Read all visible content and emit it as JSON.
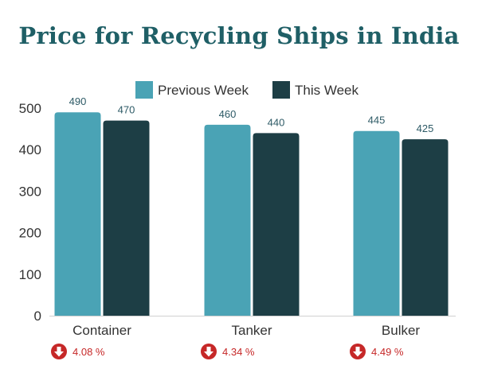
{
  "page": {
    "title": "Price for Recycling Ships in India"
  },
  "colors": {
    "previous": "#4aa3b5",
    "current": "#1d3e45",
    "decline": "#c62828",
    "title": "#1f5f66"
  },
  "chart_data": {
    "type": "bar",
    "title": "Price for Recycling Ships in India",
    "xlabel": "",
    "ylabel": "",
    "ylim": [
      0,
      500
    ],
    "yticks": [
      0,
      100,
      200,
      300,
      400,
      500
    ],
    "categories": [
      "Container",
      "Tanker",
      "Bulker"
    ],
    "series": [
      {
        "name": "Previous Week",
        "values": [
          490,
          460,
          445
        ]
      },
      {
        "name": "This Week",
        "values": [
          470,
          440,
          425
        ]
      }
    ],
    "legend_position": "top",
    "grid": false,
    "changes": [
      {
        "icon": "down-arrow-icon",
        "label": "4.08 %"
      },
      {
        "icon": "down-arrow-icon",
        "label": "4.34 %"
      },
      {
        "icon": "down-arrow-icon",
        "label": "4.49 %"
      }
    ]
  }
}
